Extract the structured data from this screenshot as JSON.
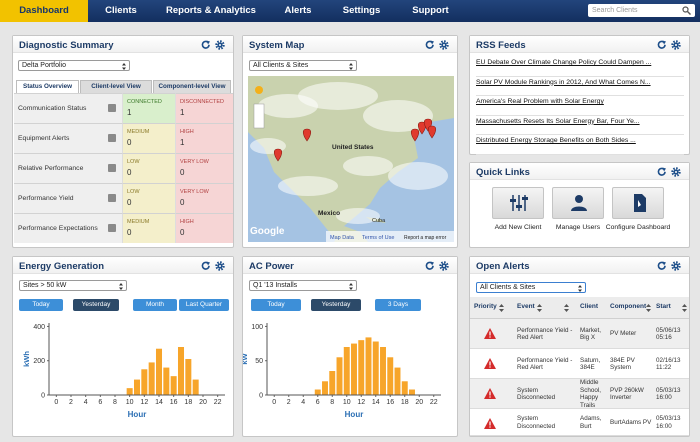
{
  "nav": {
    "tabs": [
      "Dashboard",
      "Clients",
      "Reports & Analytics",
      "Alerts",
      "Settings",
      "Support"
    ],
    "search": "Search Clients"
  },
  "diagnostic": {
    "title": "Diagnostic Summary",
    "portfolio": "Delta Portfolio",
    "tabs": [
      "Status Overview",
      "Client-level View",
      "Component-level View"
    ],
    "rows": [
      {
        "label": "Communication Status",
        "cells": [
          {
            "label": "CONNECTED",
            "value": 1,
            "color": "#d9efcc"
          },
          {
            "label": "DISCONNECTED",
            "value": 1,
            "color": "#f6d5d5"
          }
        ]
      },
      {
        "label": "Equipment Alerts",
        "cells": [
          {
            "label": "MEDIUM",
            "value": 0,
            "color": "#f4efcb"
          },
          {
            "label": "HIGH",
            "value": 1,
            "color": "#f6d5d5"
          }
        ]
      },
      {
        "label": "Relative Performance",
        "cells": [
          {
            "label": "LOW",
            "value": 0,
            "color": "#f4efcb"
          },
          {
            "label": "VERY LOW",
            "value": 0,
            "color": "#f6d5d5"
          }
        ]
      },
      {
        "label": "Performance Yield",
        "cells": [
          {
            "label": "LOW",
            "value": 0,
            "color": "#f4efcb"
          },
          {
            "label": "VERY LOW",
            "value": 0,
            "color": "#f6d5d5"
          }
        ]
      },
      {
        "label": "Performance Expectations",
        "cells": [
          {
            "label": "MEDIUM",
            "value": 0,
            "color": "#f4efcb"
          },
          {
            "label": "HIGH",
            "value": 0,
            "color": "#f6d5d5"
          }
        ]
      }
    ]
  },
  "map": {
    "title": "System Map",
    "filter": "All Clients & Sites",
    "places": [
      "United States",
      "Mexico",
      "Cuba"
    ],
    "brand": "Google",
    "footer": [
      "Map Data",
      "Terms of Use",
      "Report a map error"
    ]
  },
  "rss": {
    "title": "RSS Feeds",
    "items": [
      "EU Debate Over Climate Change Policy Could Dampen ...",
      "Solar PV Module Rankings in 2012, And What Comes N...",
      "America's Real Problem with Solar Energy",
      "Massachusetts Resets Its Solar Energy Bar, Four Ye...",
      "Distributed Energy Storage Benefits on Both Sides ..."
    ]
  },
  "quick_links": {
    "title": "Quick Links",
    "items": [
      "Add New Client",
      "Manage Users",
      "Configure Dashboard"
    ]
  },
  "chart_data": [
    {
      "type": "bar",
      "title": "Energy Generation",
      "filter": "Sites > 50 kW",
      "buttons": [
        "Today",
        "Yesterday",
        "Month",
        "Last Quarter"
      ],
      "selected": "Yesterday",
      "x": [
        10,
        11,
        12,
        13,
        14,
        15,
        16,
        17,
        18,
        19
      ],
      "values": [
        40,
        90,
        150,
        190,
        270,
        160,
        110,
        280,
        210,
        90
      ],
      "color": "#f7a52a",
      "xlim": [
        -1,
        23
      ],
      "xticks": [
        0,
        2,
        4,
        6,
        8,
        10,
        12,
        14,
        16,
        18,
        20,
        22
      ],
      "ylim": [
        0,
        420
      ],
      "yticks": [
        0,
        200,
        400
      ],
      "xlabel": "Hour",
      "ylabel": "kWh"
    },
    {
      "type": "bar",
      "title": "AC Power",
      "filter": "Q1 '13 Installs",
      "buttons": [
        "Today",
        "Yesterday",
        "3 Days"
      ],
      "selected": "Yesterday",
      "x": [
        6,
        7,
        8,
        9,
        10,
        11,
        12,
        13,
        14,
        15,
        16,
        17,
        18,
        19
      ],
      "values": [
        8,
        20,
        35,
        55,
        70,
        75,
        80,
        84,
        78,
        70,
        55,
        40,
        20,
        8
      ],
      "color": "#f7a52a",
      "xlim": [
        -1,
        23
      ],
      "xticks": [
        0,
        2,
        4,
        6,
        8,
        10,
        12,
        14,
        16,
        18,
        20,
        22
      ],
      "ylim": [
        0,
        105
      ],
      "yticks": [
        0,
        50,
        100
      ],
      "xlabel": "Hour",
      "ylabel": "kW"
    }
  ],
  "alerts": {
    "title": "Open Alerts",
    "filter": "All Clients & Sites",
    "columns": [
      "Priority",
      "Event",
      "Client",
      "Component",
      "Start"
    ],
    "rows": [
      {
        "event": "Performance Yield - Red Alert",
        "client": "Market, Big X",
        "component": "PV Meter",
        "start": "05/06/13 05:16"
      },
      {
        "event": "Performance Yield - Red Alert",
        "client": "Saturn, 384E",
        "component": "384E PV System",
        "start": "02/16/13 11:22"
      },
      {
        "event": "System Disconnected",
        "client": "Middle School, Happy Trails",
        "component": "PVP 260kW Inverter",
        "start": "05/03/13 16:00"
      },
      {
        "event": "System Disconnected",
        "client": "Adams, Burt",
        "component": "BurtAdams PV",
        "start": "05/03/13 16:00"
      }
    ]
  }
}
